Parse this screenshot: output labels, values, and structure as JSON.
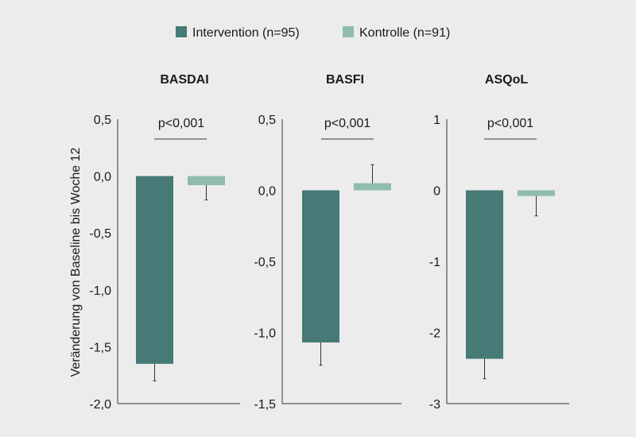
{
  "chart_data": {
    "type": "bar",
    "ylabel": "Veränderung von Baseline bis Woche 12",
    "legend": {
      "placement": "top-center",
      "entries": [
        {
          "name": "Intervention (n=95)",
          "color": "#457a76"
        },
        {
          "name": "Kontrolle (n=91)",
          "color": "#8fbcad"
        }
      ]
    },
    "panels": [
      {
        "title": "BASDAI",
        "pvalue": "p<0,001",
        "ylim": [
          -2.0,
          0.5
        ],
        "ticks": [
          0.5,
          0.0,
          -0.5,
          -1.0,
          -1.5,
          -2.0
        ],
        "tick_labels": [
          "0,5",
          "0,0",
          "-0,5",
          "-1,0",
          "-1,5",
          "-2,0"
        ],
        "series": [
          {
            "name": "Intervention (n=95)",
            "value": -1.65,
            "error": 0.15
          },
          {
            "name": "Kontrolle (n=91)",
            "value": -0.08,
            "error": 0.13
          }
        ]
      },
      {
        "title": "BASFI",
        "pvalue": "p<0,001",
        "ylim": [
          -1.5,
          0.5
        ],
        "ticks": [
          0.5,
          0.0,
          -0.5,
          -1.0,
          -1.5
        ],
        "tick_labels": [
          "0,5",
          "0,0",
          "-0,5",
          "-1,0",
          "-1,5"
        ],
        "series": [
          {
            "name": "Intervention (n=95)",
            "value": -1.07,
            "error": 0.16
          },
          {
            "name": "Kontrolle (n=91)",
            "value": 0.05,
            "error": 0.13
          }
        ]
      },
      {
        "title": "ASQoL",
        "pvalue": "p<0,001",
        "ylim": [
          -3,
          1
        ],
        "ticks": [
          1,
          0,
          -1,
          -2,
          -3
        ],
        "tick_labels": [
          "1",
          "0",
          "-1",
          "-2",
          "-3"
        ],
        "series": [
          {
            "name": "Intervention (n=95)",
            "value": -2.37,
            "error": 0.28
          },
          {
            "name": "Kontrolle (n=91)",
            "value": -0.08,
            "error": 0.28
          }
        ]
      }
    ]
  }
}
